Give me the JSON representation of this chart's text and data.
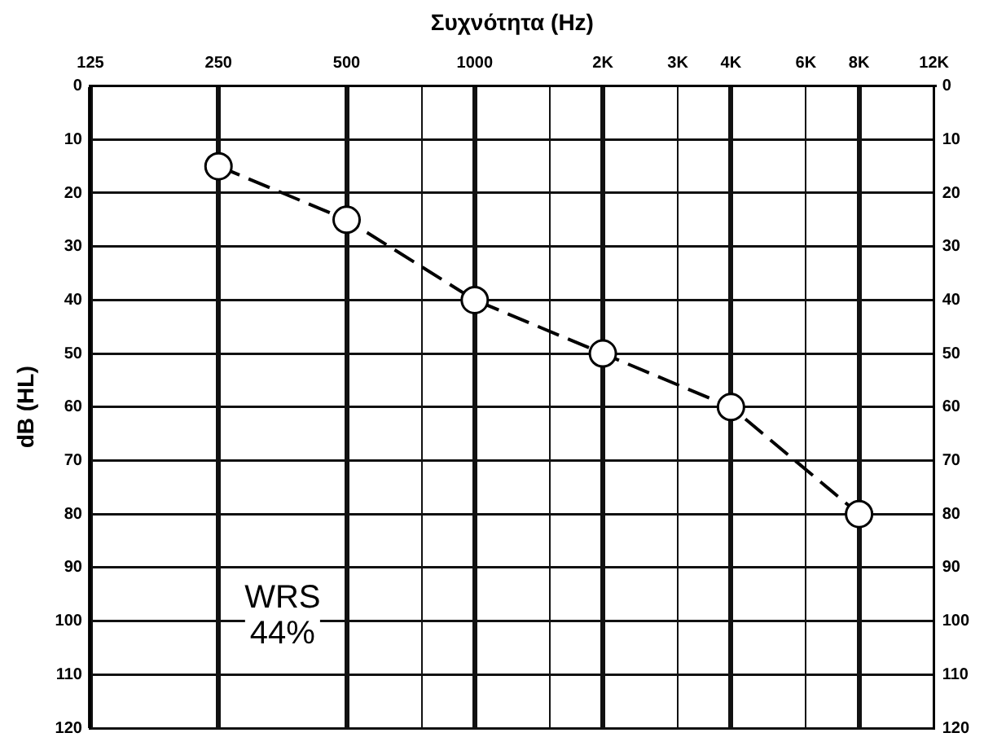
{
  "chart_data": {
    "type": "line",
    "xlabel": "Συχνότητα (Hz)",
    "ylabel": "dB (HL)",
    "x": [
      250,
      500,
      1000,
      2000,
      4000,
      8000
    ],
    "series": [
      {
        "color": "#000000",
        "values": [
          15,
          25,
          40,
          50,
          60,
          80
        ]
      }
    ],
    "log": "x",
    "xlim": [
      125,
      12000
    ],
    "xticks": [
      125,
      250,
      500,
      {
        "value": 750,
        "label": null
      },
      1000,
      {
        "value": 1500,
        "label": null
      },
      {
        "value": 2000,
        "label": "2K"
      },
      {
        "value": 3000,
        "label": "3K"
      },
      {
        "value": 4000,
        "label": "4K"
      },
      {
        "value": 6000,
        "label": "6K"
      },
      {
        "value": 8000,
        "label": "8K"
      },
      {
        "value": 12000,
        "label": "12K"
      }
    ],
    "ylim": [
      120,
      0
    ],
    "yticks": [
      0,
      10,
      20,
      30,
      40,
      50,
      60,
      70,
      80,
      90,
      100,
      110,
      120
    ],
    "y2lim": [
      120,
      0
    ],
    "y2ticks": [
      0,
      10,
      20,
      30,
      40,
      50,
      60,
      70,
      80,
      90,
      100,
      110,
      120
    ],
    "annotations": [
      "WRS",
      "44%"
    ],
    "grid": true,
    "legend": false,
    "marker": "circle",
    "line_style": "dashed"
  }
}
